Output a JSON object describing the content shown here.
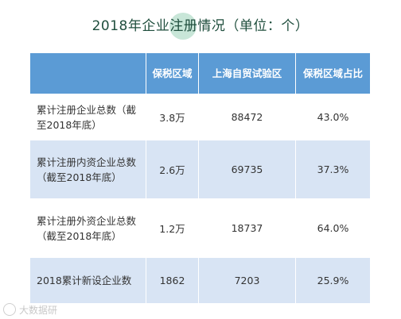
{
  "title": "2018年企业注册情况（单位：个）",
  "table": {
    "headers": [
      "",
      "保税区域",
      "上海自贸试验区",
      "保税区域占比"
    ],
    "rows": [
      {
        "label": "累计注册企业总数（截至2018年底）",
        "bonded": "3.8万",
        "ftz": "88472",
        "ratio": "43.0%"
      },
      {
        "label": "累计注册内资企业总数（截至2018年底）",
        "bonded": "2.6万",
        "ftz": "69735",
        "ratio": "37.3%"
      },
      {
        "label": "累计注册外资企业总数（截至2018年底）",
        "bonded": "1.2万",
        "ftz": "18737",
        "ratio": "64.0%"
      },
      {
        "label": "2018累计新设企业数",
        "bonded": "1862",
        "ftz": "7203",
        "ratio": "25.9%"
      }
    ]
  },
  "watermark": "大数据研"
}
